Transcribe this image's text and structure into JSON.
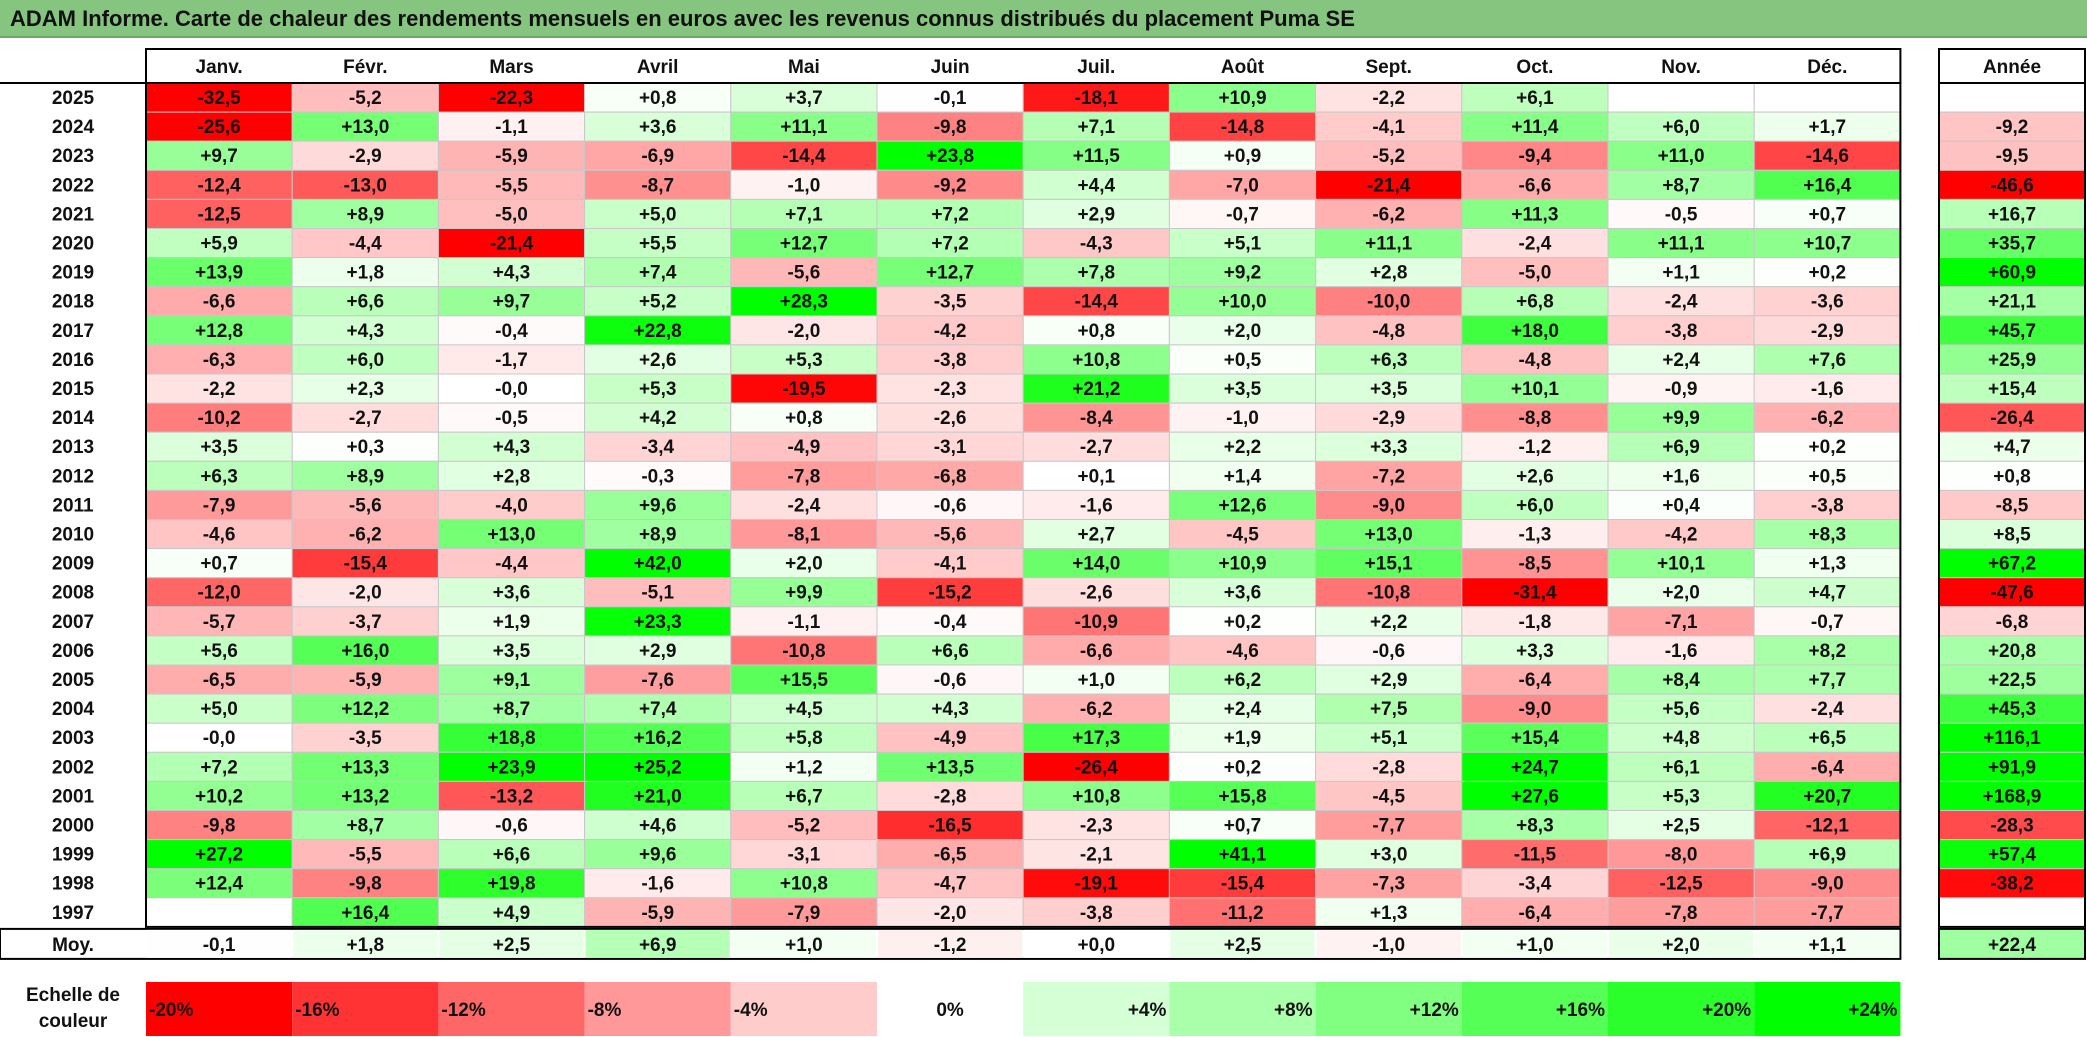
{
  "title": "ADAM Informe. Carte de chaleur des rendements mensuels en euros avec les revenus connus distribués du placement Puma SE",
  "chart_data": {
    "type": "heatmap",
    "months": [
      "Janv.",
      "Févr.",
      "Mars",
      "Avril",
      "Mai",
      "Juin",
      "Juil.",
      "Août",
      "Sept.",
      "Oct.",
      "Nov.",
      "Déc."
    ],
    "year_column_label": "Année",
    "rows": [
      {
        "year": "2025",
        "months": [
          "-32,5",
          "-5,2",
          "-22,3",
          "+0,8",
          "+3,7",
          "-0,1",
          "-18,1",
          "+10,9",
          "-2,2",
          "+6,1",
          "",
          ""
        ],
        "annual": ""
      },
      {
        "year": "2024",
        "months": [
          "-25,6",
          "+13,0",
          "-1,1",
          "+3,6",
          "+11,1",
          "-9,8",
          "+7,1",
          "-14,8",
          "-4,1",
          "+11,4",
          "+6,0",
          "+1,7"
        ],
        "annual": "-9,2"
      },
      {
        "year": "2023",
        "months": [
          "+9,7",
          "-2,9",
          "-5,9",
          "-6,9",
          "-14,4",
          "+23,8",
          "+11,5",
          "+0,9",
          "-5,2",
          "-9,4",
          "+11,0",
          "-14,6"
        ],
        "annual": "-9,5"
      },
      {
        "year": "2022",
        "months": [
          "-12,4",
          "-13,0",
          "-5,5",
          "-8,7",
          "-1,0",
          "-9,2",
          "+4,4",
          "-7,0",
          "-21,4",
          "-6,6",
          "+8,7",
          "+16,4"
        ],
        "annual": "-46,6"
      },
      {
        "year": "2021",
        "months": [
          "-12,5",
          "+8,9",
          "-5,0",
          "+5,0",
          "+7,1",
          "+7,2",
          "+2,9",
          "-0,7",
          "-6,2",
          "+11,3",
          "-0,5",
          "+0,7"
        ],
        "annual": "+16,7"
      },
      {
        "year": "2020",
        "months": [
          "+5,9",
          "-4,4",
          "-21,4",
          "+5,5",
          "+12,7",
          "+7,2",
          "-4,3",
          "+5,1",
          "+11,1",
          "-2,4",
          "+11,1",
          "+10,7"
        ],
        "annual": "+35,7"
      },
      {
        "year": "2019",
        "months": [
          "+13,9",
          "+1,8",
          "+4,3",
          "+7,4",
          "-5,6",
          "+12,7",
          "+7,8",
          "+9,2",
          "+2,8",
          "-5,0",
          "+1,1",
          "+0,2"
        ],
        "annual": "+60,9"
      },
      {
        "year": "2018",
        "months": [
          "-6,6",
          "+6,6",
          "+9,7",
          "+5,2",
          "+28,3",
          "-3,5",
          "-14,4",
          "+10,0",
          "-10,0",
          "+6,8",
          "-2,4",
          "-3,6"
        ],
        "annual": "+21,1"
      },
      {
        "year": "2017",
        "months": [
          "+12,8",
          "+4,3",
          "-0,4",
          "+22,8",
          "-2,0",
          "-4,2",
          "+0,8",
          "+2,0",
          "-4,8",
          "+18,0",
          "-3,8",
          "-2,9"
        ],
        "annual": "+45,7"
      },
      {
        "year": "2016",
        "months": [
          "-6,3",
          "+6,0",
          "-1,7",
          "+2,6",
          "+5,3",
          "-3,8",
          "+10,8",
          "+0,5",
          "+6,3",
          "-4,8",
          "+2,4",
          "+7,6"
        ],
        "annual": "+25,9"
      },
      {
        "year": "2015",
        "months": [
          "-2,2",
          "+2,3",
          "-0,0",
          "+5,3",
          "-19,5",
          "-2,3",
          "+21,2",
          "+3,5",
          "+3,5",
          "+10,1",
          "-0,9",
          "-1,6"
        ],
        "annual": "+15,4"
      },
      {
        "year": "2014",
        "months": [
          "-10,2",
          "-2,7",
          "-0,5",
          "+4,2",
          "+0,8",
          "-2,6",
          "-8,4",
          "-1,0",
          "-2,9",
          "-8,8",
          "+9,9",
          "-6,2"
        ],
        "annual": "-26,4"
      },
      {
        "year": "2013",
        "months": [
          "+3,5",
          "+0,3",
          "+4,3",
          "-3,4",
          "-4,9",
          "-3,1",
          "-2,7",
          "+2,2",
          "+3,3",
          "-1,2",
          "+6,9",
          "+0,2"
        ],
        "annual": "+4,7"
      },
      {
        "year": "2012",
        "months": [
          "+6,3",
          "+8,9",
          "+2,8",
          "-0,3",
          "-7,8",
          "-6,8",
          "+0,1",
          "+1,4",
          "-7,2",
          "+2,6",
          "+1,6",
          "+0,5"
        ],
        "annual": "+0,8"
      },
      {
        "year": "2011",
        "months": [
          "-7,9",
          "-5,6",
          "-4,0",
          "+9,6",
          "-2,4",
          "-0,6",
          "-1,6",
          "+12,6",
          "-9,0",
          "+6,0",
          "+0,4",
          "-3,8"
        ],
        "annual": "-8,5"
      },
      {
        "year": "2010",
        "months": [
          "-4,6",
          "-6,2",
          "+13,0",
          "+8,9",
          "-8,1",
          "-5,6",
          "+2,7",
          "-4,5",
          "+13,0",
          "-1,3",
          "-4,2",
          "+8,3"
        ],
        "annual": "+8,5"
      },
      {
        "year": "2009",
        "months": [
          "+0,7",
          "-15,4",
          "-4,4",
          "+42,0",
          "+2,0",
          "-4,1",
          "+14,0",
          "+10,9",
          "+15,1",
          "-8,5",
          "+10,1",
          "+1,3"
        ],
        "annual": "+67,2"
      },
      {
        "year": "2008",
        "months": [
          "-12,0",
          "-2,0",
          "+3,6",
          "-5,1",
          "+9,9",
          "-15,2",
          "-2,6",
          "+3,6",
          "-10,8",
          "-31,4",
          "+2,0",
          "+4,7"
        ],
        "annual": "-47,6"
      },
      {
        "year": "2007",
        "months": [
          "-5,7",
          "-3,7",
          "+1,9",
          "+23,3",
          "-1,1",
          "-0,4",
          "-10,9",
          "+0,2",
          "+2,2",
          "-1,8",
          "-7,1",
          "-0,7"
        ],
        "annual": "-6,8"
      },
      {
        "year": "2006",
        "months": [
          "+5,6",
          "+16,0",
          "+3,5",
          "+2,9",
          "-10,8",
          "+6,6",
          "-6,6",
          "-4,6",
          "-0,6",
          "+3,3",
          "-1,6",
          "+8,2"
        ],
        "annual": "+20,8"
      },
      {
        "year": "2005",
        "months": [
          "-6,5",
          "-5,9",
          "+9,1",
          "-7,6",
          "+15,5",
          "-0,6",
          "+1,0",
          "+6,2",
          "+2,9",
          "-6,4",
          "+8,4",
          "+7,7"
        ],
        "annual": "+22,5"
      },
      {
        "year": "2004",
        "months": [
          "+5,0",
          "+12,2",
          "+8,7",
          "+7,4",
          "+4,5",
          "+4,3",
          "-6,2",
          "+2,4",
          "+7,5",
          "-9,0",
          "+5,6",
          "-2,4"
        ],
        "annual": "+45,3"
      },
      {
        "year": "2003",
        "months": [
          "-0,0",
          "-3,5",
          "+18,8",
          "+16,2",
          "+5,8",
          "-4,9",
          "+17,3",
          "+1,9",
          "+5,1",
          "+15,4",
          "+4,8",
          "+6,5"
        ],
        "annual": "+116,1"
      },
      {
        "year": "2002",
        "months": [
          "+7,2",
          "+13,3",
          "+23,9",
          "+25,2",
          "+1,2",
          "+13,5",
          "-26,4",
          "+0,2",
          "-2,8",
          "+24,7",
          "+6,1",
          "-6,4"
        ],
        "annual": "+91,9"
      },
      {
        "year": "2001",
        "months": [
          "+10,2",
          "+13,2",
          "-13,2",
          "+21,0",
          "+6,7",
          "-2,8",
          "+10,8",
          "+15,8",
          "-4,5",
          "+27,6",
          "+5,3",
          "+20,7"
        ],
        "annual": "+168,9"
      },
      {
        "year": "2000",
        "months": [
          "-9,8",
          "+8,7",
          "-0,6",
          "+4,6",
          "-5,2",
          "-16,5",
          "-2,3",
          "+0,7",
          "-7,7",
          "+8,3",
          "+2,5",
          "-12,1"
        ],
        "annual": "-28,3"
      },
      {
        "year": "1999",
        "months": [
          "+27,2",
          "-5,5",
          "+6,6",
          "+9,6",
          "-3,1",
          "-6,5",
          "-2,1",
          "+41,1",
          "+3,0",
          "-11,5",
          "-8,0",
          "+6,9"
        ],
        "annual": "+57,4"
      },
      {
        "year": "1998",
        "months": [
          "+12,4",
          "-9,8",
          "+19,8",
          "-1,6",
          "+10,8",
          "-4,7",
          "-19,1",
          "-15,4",
          "-7,3",
          "-3,4",
          "-12,5",
          "-9,0"
        ],
        "annual": "-38,2"
      },
      {
        "year": "1997",
        "months": [
          "",
          "+16,4",
          "+4,9",
          "-5,9",
          "-7,9",
          "-2,0",
          "-3,8",
          "-11,2",
          "+1,3",
          "-6,4",
          "-7,8",
          "-7,7"
        ],
        "annual": ""
      }
    ],
    "average": {
      "label": "Moy.",
      "months": [
        "-0,1",
        "+1,8",
        "+2,5",
        "+6,9",
        "+1,0",
        "-1,2",
        "+0,0",
        "+2,5",
        "-1,0",
        "+1,0",
        "+2,0",
        "+1,1"
      ],
      "annual": "+22,4"
    },
    "color_scale": {
      "label_line1": "Echelle de",
      "label_line2": "couleur",
      "steps": [
        "-20%",
        "-16%",
        "-12%",
        "-8%",
        "-4%",
        "0%",
        "+4%",
        "+8%",
        "+12%",
        "+16%",
        "+20%",
        "+24%"
      ],
      "step_values": [
        -20,
        -16,
        -12,
        -8,
        -4,
        0,
        4,
        8,
        12,
        16,
        20,
        24
      ],
      "negative_color": "#ff0000",
      "positive_color": "#00ff00",
      "neutral_color": "#ffffff"
    }
  }
}
